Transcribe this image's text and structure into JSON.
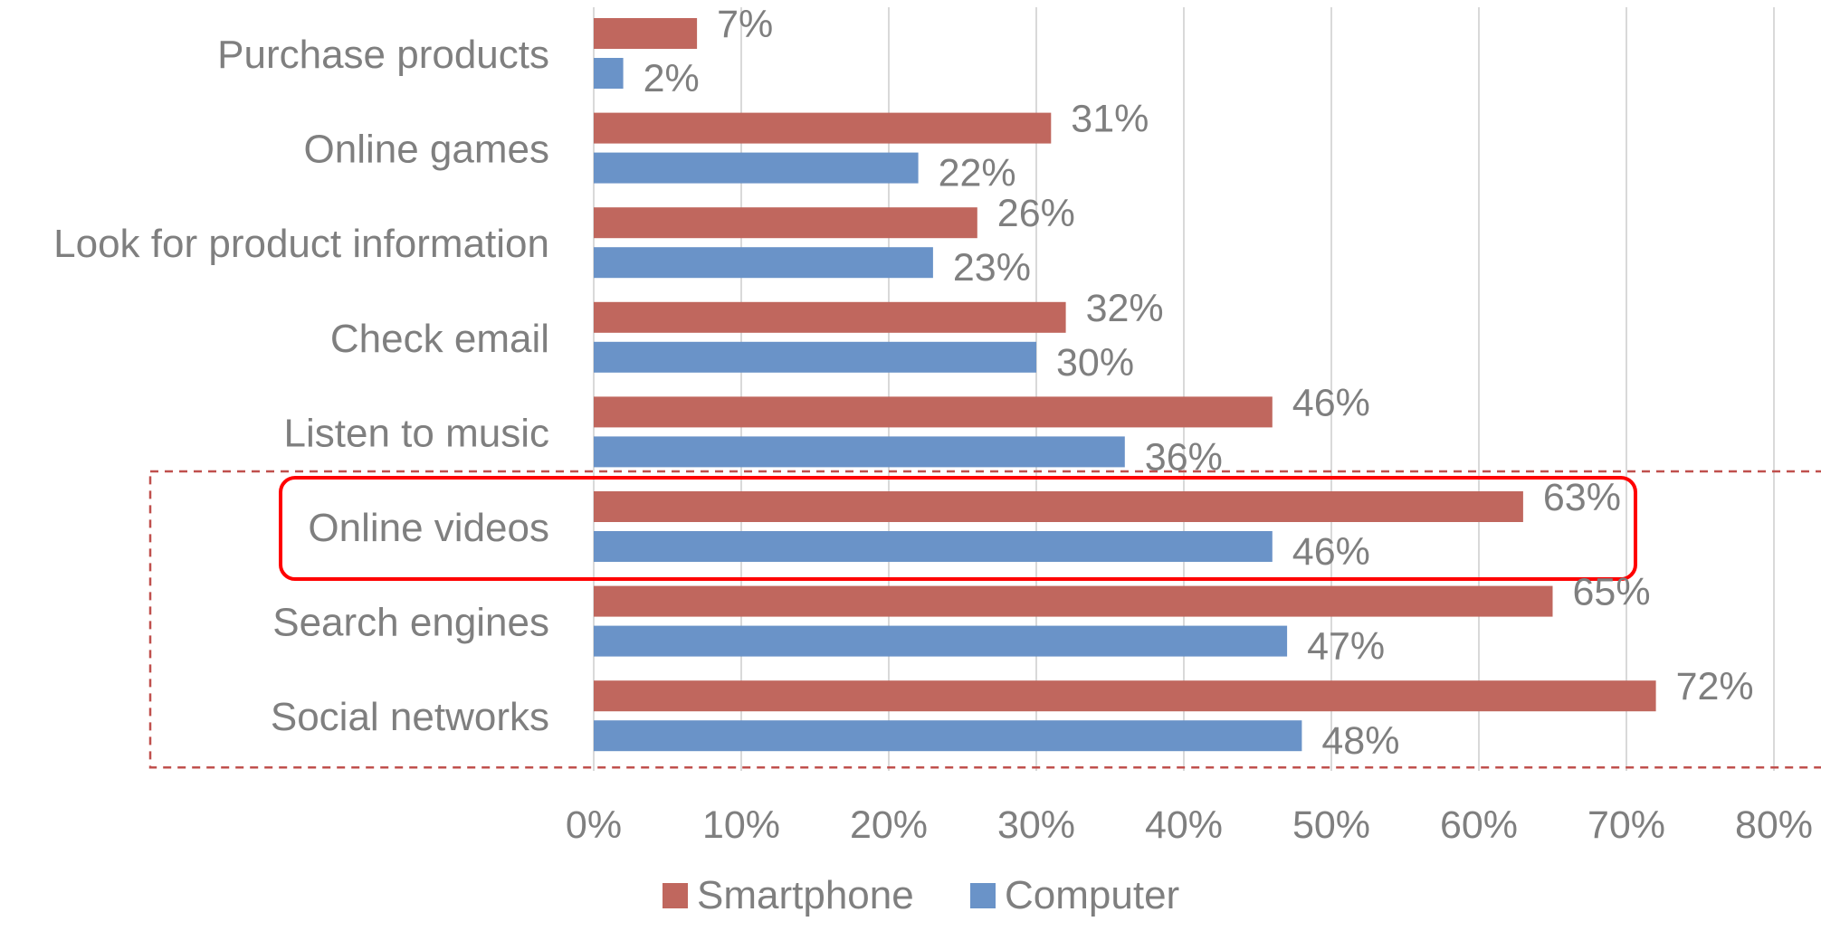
{
  "chart_data": {
    "type": "bar",
    "orientation": "horizontal",
    "categories": [
      "Purchase products",
      "Online games",
      "Look for product information",
      "Check email",
      "Listen to music",
      "Online videos",
      "Search engines",
      "Social networks"
    ],
    "series": [
      {
        "name": "Smartphone",
        "color": "#c0675e",
        "values": [
          7,
          31,
          26,
          32,
          46,
          63,
          65,
          72
        ],
        "labels": [
          "7%",
          "31%",
          "26%",
          "32%",
          "46%",
          "63%",
          "65%",
          "72%"
        ]
      },
      {
        "name": "Computer",
        "color": "#6a93c8",
        "values": [
          2,
          22,
          23,
          30,
          36,
          46,
          47,
          48
        ],
        "labels": [
          "2%",
          "22%",
          "23%",
          "30%",
          "36%",
          "46%",
          "47%",
          "48%"
        ]
      }
    ],
    "xlim": [
      0,
      80
    ],
    "xticks": [
      0,
      10,
      20,
      30,
      40,
      50,
      60,
      70,
      80
    ],
    "xtick_labels": [
      "0%",
      "10%",
      "20%",
      "30%",
      "40%",
      "50%",
      "60%",
      "70%",
      "80%"
    ],
    "grid": true,
    "legend": "bottom",
    "title": "",
    "xlabel": "",
    "ylabel": "",
    "annotations": [
      {
        "type": "solid-red-rounded-box",
        "color": "#ff0000",
        "category_from": "Online videos",
        "category_to": "Online videos"
      },
      {
        "type": "dashed-red-box",
        "color": "#c0504d",
        "category_from": "Online videos",
        "category_to": "Social networks"
      }
    ]
  }
}
